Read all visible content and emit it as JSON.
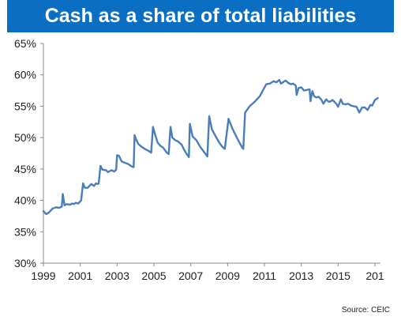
{
  "chart_data": {
    "type": "line",
    "title": "Cash as a share of total liabilities",
    "xlabel": "",
    "ylabel": "",
    "ylim": [
      30,
      65
    ],
    "xlim": [
      1999.0,
      2017.3
    ],
    "grid": false,
    "legend": "none",
    "x_tick_labels": [
      "1999",
      "2001",
      "2003",
      "2005",
      "2007",
      "2009",
      "2011",
      "2013",
      "2015",
      "201"
    ],
    "y_tick_labels": [
      "30%",
      "35%",
      "40%",
      "45%",
      "50%",
      "55%",
      "60%",
      "65%"
    ],
    "y_tick_values": [
      30,
      35,
      40,
      45,
      50,
      55,
      60,
      65
    ],
    "series": [
      {
        "color": "#4a7ebb",
        "x": [
          1999.0,
          1999.15,
          1999.3,
          1999.5,
          1999.7,
          1999.85,
          2000.0,
          2000.05,
          2000.15,
          2000.25,
          2000.45,
          2000.55,
          2000.65,
          2000.75,
          2000.9,
          2000.98,
          2001.05,
          2001.15,
          2001.25,
          2001.4,
          2001.6,
          2001.75,
          2001.85,
          2001.95,
          2002.0,
          2002.1,
          2002.2,
          2002.4,
          2002.5,
          2002.7,
          2002.85,
          2002.95,
          2003.0,
          2003.1,
          2003.25,
          2003.4,
          2003.6,
          2003.8,
          2003.9,
          2003.95,
          2004.05,
          2004.15,
          2004.3,
          2004.5,
          2004.7,
          2004.85,
          2004.95,
          2005.05,
          2005.2,
          2005.35,
          2005.5,
          2005.7,
          2005.8,
          2005.9,
          2006.0,
          2006.15,
          2006.3,
          2006.5,
          2006.65,
          2006.8,
          2006.9,
          2006.95,
          2007.1,
          2007.3,
          2007.5,
          2007.7,
          2007.8,
          2007.9,
          2008.0,
          2008.15,
          2008.35,
          2008.55,
          2008.7,
          2008.8,
          2008.85,
          2009.05,
          2009.25,
          2009.5,
          2009.7,
          2009.8,
          2009.85,
          2009.95,
          2010.2,
          2010.5,
          2010.75,
          2010.95,
          2011.1,
          2011.3,
          2011.5,
          2011.65,
          2011.8,
          2011.9,
          2012.0,
          2012.15,
          2012.3,
          2012.45,
          2012.55,
          2012.7,
          2012.75,
          2012.85,
          2013.0,
          2013.15,
          2013.3,
          2013.45,
          2013.5,
          2013.6,
          2013.7,
          2013.8,
          2013.95,
          2014.1,
          2014.2,
          2014.35,
          2014.45,
          2014.55,
          2014.7,
          2014.9,
          2015.0,
          2015.15,
          2015.25,
          2015.4,
          2015.55,
          2015.7,
          2015.85,
          2016.0,
          2016.15,
          2016.3,
          2016.45,
          2016.6,
          2016.75,
          2016.85,
          2017.0,
          2017.15
        ],
        "values": [
          38.3,
          37.8,
          38.1,
          38.7,
          38.9,
          38.8,
          39.0,
          41.0,
          39.2,
          39.4,
          39.3,
          39.5,
          39.4,
          39.6,
          39.5,
          39.8,
          40.0,
          42.7,
          42.0,
          42.0,
          42.6,
          42.3,
          42.7,
          42.6,
          42.7,
          45.5,
          44.9,
          44.8,
          44.5,
          44.8,
          44.6,
          44.9,
          47.2,
          47.1,
          46.2,
          46.0,
          45.8,
          45.4,
          45.3,
          50.4,
          49.6,
          49.0,
          48.6,
          48.2,
          47.9,
          47.6,
          51.7,
          50.6,
          49.2,
          48.7,
          48.4,
          47.6,
          47.4,
          51.7,
          50.0,
          49.6,
          49.4,
          48.9,
          48.0,
          47.3,
          46.9,
          52.2,
          50.2,
          49.6,
          48.6,
          47.8,
          47.4,
          47.0,
          53.4,
          51.3,
          50.2,
          49.2,
          48.6,
          48.3,
          48.2,
          53.0,
          51.5,
          50.0,
          48.9,
          48.4,
          48.2,
          54.0,
          55.0,
          55.8,
          56.6,
          57.7,
          58.5,
          58.6,
          59.0,
          58.8,
          59.2,
          58.6,
          58.8,
          59.1,
          58.7,
          58.5,
          58.6,
          58.3,
          56.8,
          57.9,
          58.0,
          57.5,
          57.6,
          57.7,
          55.8,
          57.4,
          56.6,
          56.4,
          56.5,
          56.0,
          55.4,
          56.1,
          55.8,
          55.7,
          56.0,
          55.4,
          54.9,
          56.1,
          55.4,
          55.3,
          55.4,
          55.1,
          55.0,
          54.9,
          54.0,
          54.8,
          54.8,
          54.4,
          55.2,
          55.1,
          56.0,
          56.3
        ]
      }
    ]
  },
  "footer": {
    "source": "Source: CEIC"
  }
}
